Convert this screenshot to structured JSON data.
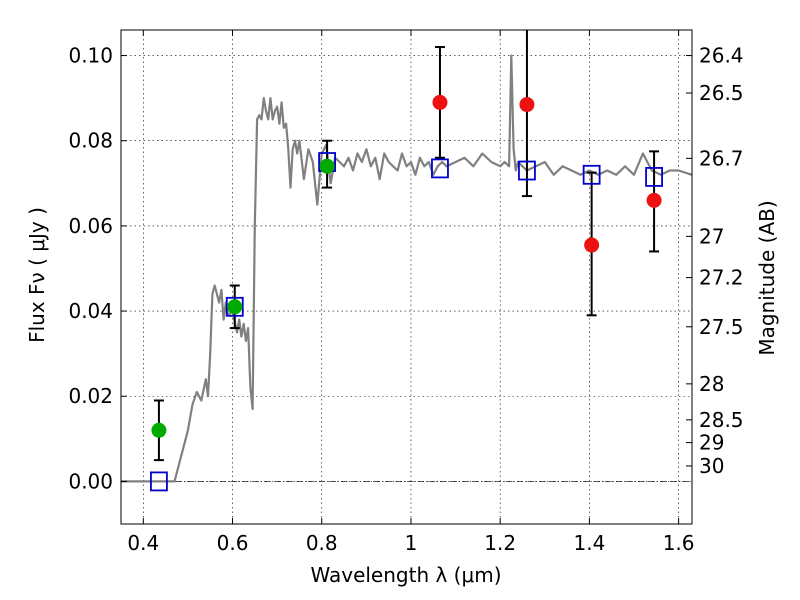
{
  "chart_data": {
    "type": "scatter",
    "title": "",
    "xlabel": "Wavelength  λ (μm)",
    "ylabel": "Flux  Fν  ( μJy )",
    "y2label": "Magnitude (AB)",
    "xlim": [
      0.35,
      1.63
    ],
    "ylim": [
      -0.01,
      0.106
    ],
    "grid": true,
    "x_ticks": [
      0.4,
      0.6,
      0.8,
      1.0,
      1.2,
      1.4,
      1.6
    ],
    "x_tick_labels": [
      "0.4",
      "0.6",
      "0.8",
      "1",
      "1.2",
      "1.4",
      "1.6"
    ],
    "y_ticks": [
      0.0,
      0.02,
      0.04,
      0.06,
      0.08,
      0.1
    ],
    "y_tick_labels": [
      "0.00",
      "0.02",
      "0.04",
      "0.06",
      "0.08",
      "0.10"
    ],
    "y2_ticks": [
      {
        "mag": 26.4,
        "label": "26.4"
      },
      {
        "mag": 26.5,
        "label": "26.5"
      },
      {
        "mag": 26.7,
        "label": "26.7"
      },
      {
        "mag": 27.0,
        "label": "27"
      },
      {
        "mag": 27.2,
        "label": "27.2"
      },
      {
        "mag": 27.5,
        "label": "27.5"
      },
      {
        "mag": 28.0,
        "label": "28"
      },
      {
        "mag": 28.5,
        "label": "28.5"
      },
      {
        "mag": 29.0,
        "label": "29"
      },
      {
        "mag": 30.0,
        "label": "30"
      }
    ],
    "colors": {
      "model": "#808080",
      "green": "#00aa00",
      "red": "#ee1111",
      "box": "#0000cc",
      "error": "#000000"
    },
    "model_spectrum": {
      "x": [
        0.35,
        0.44,
        0.47,
        0.48,
        0.5,
        0.51,
        0.52,
        0.53,
        0.54,
        0.545,
        0.55,
        0.555,
        0.56,
        0.57,
        0.575,
        0.58,
        0.585,
        0.59,
        0.6,
        0.61,
        0.615,
        0.62,
        0.625,
        0.63,
        0.635,
        0.64,
        0.645,
        0.65,
        0.655,
        0.66,
        0.665,
        0.67,
        0.675,
        0.68,
        0.685,
        0.69,
        0.695,
        0.7,
        0.705,
        0.71,
        0.715,
        0.72,
        0.725,
        0.73,
        0.735,
        0.74,
        0.745,
        0.75,
        0.76,
        0.77,
        0.78,
        0.79,
        0.8,
        0.81,
        0.82,
        0.83,
        0.84,
        0.85,
        0.86,
        0.87,
        0.88,
        0.89,
        0.9,
        0.91,
        0.92,
        0.93,
        0.94,
        0.95,
        0.96,
        0.97,
        0.98,
        0.99,
        1.0,
        1.01,
        1.02,
        1.03,
        1.04,
        1.05,
        1.06,
        1.07,
        1.08,
        1.1,
        1.12,
        1.14,
        1.16,
        1.18,
        1.2,
        1.21,
        1.22,
        1.225,
        1.23,
        1.235,
        1.24,
        1.25,
        1.26,
        1.28,
        1.3,
        1.32,
        1.34,
        1.36,
        1.38,
        1.4,
        1.42,
        1.44,
        1.46,
        1.48,
        1.5,
        1.52,
        1.54,
        1.56,
        1.58,
        1.6,
        1.63
      ],
      "y": [
        0.0,
        0.0,
        0.0,
        0.004,
        0.012,
        0.018,
        0.021,
        0.019,
        0.024,
        0.02,
        0.03,
        0.044,
        0.046,
        0.042,
        0.045,
        0.038,
        0.042,
        0.039,
        0.04,
        0.035,
        0.038,
        0.034,
        0.037,
        0.033,
        0.036,
        0.022,
        0.017,
        0.06,
        0.085,
        0.086,
        0.085,
        0.09,
        0.087,
        0.085,
        0.09,
        0.085,
        0.087,
        0.088,
        0.084,
        0.089,
        0.083,
        0.084,
        0.078,
        0.069,
        0.078,
        0.08,
        0.077,
        0.08,
        0.071,
        0.078,
        0.075,
        0.065,
        0.077,
        0.079,
        0.07,
        0.076,
        0.075,
        0.074,
        0.076,
        0.073,
        0.077,
        0.075,
        0.078,
        0.074,
        0.076,
        0.071,
        0.077,
        0.075,
        0.074,
        0.073,
        0.077,
        0.074,
        0.075,
        0.072,
        0.076,
        0.074,
        0.075,
        0.072,
        0.074,
        0.075,
        0.074,
        0.075,
        0.076,
        0.074,
        0.077,
        0.075,
        0.074,
        0.075,
        0.074,
        0.1,
        0.078,
        0.073,
        0.075,
        0.074,
        0.073,
        0.074,
        0.075,
        0.072,
        0.074,
        0.073,
        0.072,
        0.073,
        0.072,
        0.073,
        0.072,
        0.074,
        0.072,
        0.077,
        0.073,
        0.072,
        0.073,
        0.073,
        0.072
      ]
    },
    "green_points": [
      {
        "x": 0.435,
        "y": 0.012,
        "err_low": 0.005,
        "err_high": 0.019
      },
      {
        "x": 0.605,
        "y": 0.041,
        "err_low": 0.036,
        "err_high": 0.046
      },
      {
        "x": 0.812,
        "y": 0.074,
        "err_low": 0.069,
        "err_high": 0.08
      }
    ],
    "red_points": [
      {
        "x": 1.065,
        "y": 0.089,
        "err_low": 0.076,
        "err_high": 0.102
      },
      {
        "x": 1.26,
        "y": 0.0885,
        "err_low": 0.067,
        "err_high": 0.106
      },
      {
        "x": 1.405,
        "y": 0.0555,
        "err_low": 0.039,
        "err_high": 0.0725
      },
      {
        "x": 1.545,
        "y": 0.066,
        "err_low": 0.054,
        "err_high": 0.0775
      }
    ],
    "model_boxes": [
      {
        "x": 0.435,
        "y": 0.0
      },
      {
        "x": 0.605,
        "y": 0.041
      },
      {
        "x": 0.812,
        "y": 0.075
      },
      {
        "x": 1.065,
        "y": 0.0735
      },
      {
        "x": 1.26,
        "y": 0.073
      },
      {
        "x": 1.405,
        "y": 0.072
      },
      {
        "x": 1.545,
        "y": 0.0715
      }
    ]
  }
}
